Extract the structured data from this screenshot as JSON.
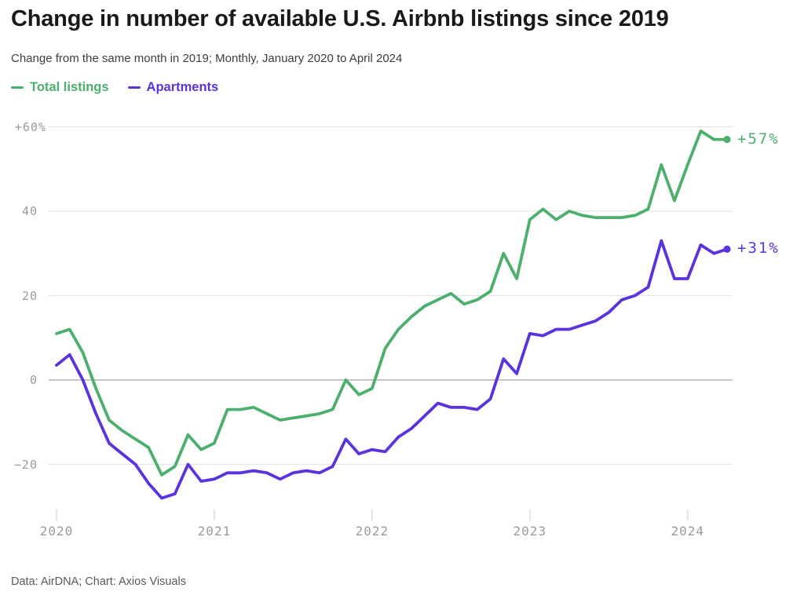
{
  "title": "Change in number of available U.S. Airbnb listings since 2019",
  "subtitle": "Change from the same month in 2019; Monthly, January 2020 to April 2024",
  "legend": [
    {
      "label": "Total listings",
      "color": "#4DAF6E"
    },
    {
      "label": "Apartments",
      "color": "#5A33DE"
    }
  ],
  "footer": "Data: AirDNA; Chart: Axios Visuals",
  "colors": {
    "grid": "#e4e4e4",
    "zero_line": "#a3a3a3",
    "tick": "#d6d6d6",
    "axis_text": "#9a9a9a",
    "background": "#ffffff"
  },
  "chart_data": {
    "type": "line",
    "title": "Change in number of available U.S. Airbnb listings since 2019",
    "subtitle": "Change from the same month in 2019; Monthly, January 2020 to April 2024",
    "y_unit": "%",
    "ylim": [
      -30,
      62
    ],
    "grid": true,
    "legend_position": "top-left",
    "months": [
      "2020-01",
      "2020-02",
      "2020-03",
      "2020-04",
      "2020-05",
      "2020-06",
      "2020-07",
      "2020-08",
      "2020-09",
      "2020-10",
      "2020-11",
      "2020-12",
      "2021-01",
      "2021-02",
      "2021-03",
      "2021-04",
      "2021-05",
      "2021-06",
      "2021-07",
      "2021-08",
      "2021-09",
      "2021-10",
      "2021-11",
      "2021-12",
      "2022-01",
      "2022-02",
      "2022-03",
      "2022-04",
      "2022-05",
      "2022-06",
      "2022-07",
      "2022-08",
      "2022-09",
      "2022-10",
      "2022-11",
      "2022-12",
      "2023-01",
      "2023-02",
      "2023-03",
      "2023-04",
      "2023-05",
      "2023-06",
      "2023-07",
      "2023-08",
      "2023-09",
      "2023-10",
      "2023-11",
      "2023-12",
      "2024-01",
      "2024-02",
      "2024-03",
      "2024-04"
    ],
    "x_axis": {
      "tick_labels": [
        "2020",
        "2021",
        "2022",
        "2023",
        "2024"
      ],
      "tick_month_indices": [
        0,
        12,
        24,
        36,
        48
      ]
    },
    "y_axis": {
      "ticks": [
        {
          "value": 60,
          "label": "+60%"
        },
        {
          "value": 40,
          "label": "40"
        },
        {
          "value": 20,
          "label": "20"
        },
        {
          "value": 0,
          "label": "0"
        },
        {
          "value": -20,
          "label": "−20"
        }
      ]
    },
    "series": [
      {
        "name": "Total listings",
        "color": "#4DAF6E",
        "end_label": "+57%",
        "values": [
          11,
          12,
          6.5,
          -2,
          -9.5,
          -12,
          -14,
          -16,
          -22.5,
          -20.5,
          -13,
          -16.5,
          -15,
          -7,
          -7,
          -6.5,
          -8,
          -9.5,
          -9,
          -8.5,
          -8,
          -7,
          0,
          -3.5,
          -2,
          7.5,
          12,
          15,
          17.5,
          19,
          20.5,
          18,
          19,
          21,
          30,
          24,
          38,
          40.5,
          38,
          40,
          39,
          38.5,
          38.5,
          38.5,
          39,
          40.5,
          51,
          42.5,
          51,
          59,
          57,
          57
        ]
      },
      {
        "name": "Apartments",
        "color": "#5A33DE",
        "end_label": "+31%",
        "values": [
          3.5,
          6,
          0,
          -8,
          -15,
          -17.5,
          -20,
          -24.5,
          -28,
          -27,
          -20,
          -24,
          -23.5,
          -22,
          -22,
          -21.5,
          -22,
          -23.5,
          -22,
          -21.5,
          -22,
          -20.5,
          -14,
          -17.5,
          -16.5,
          -17,
          -13.5,
          -11.5,
          -8.5,
          -5.5,
          -6.5,
          -6.5,
          -7,
          -4.5,
          5,
          1.5,
          11,
          10.5,
          12,
          12,
          13,
          14,
          16,
          19,
          20,
          22,
          33,
          24,
          24,
          32,
          30,
          31
        ]
      }
    ]
  }
}
